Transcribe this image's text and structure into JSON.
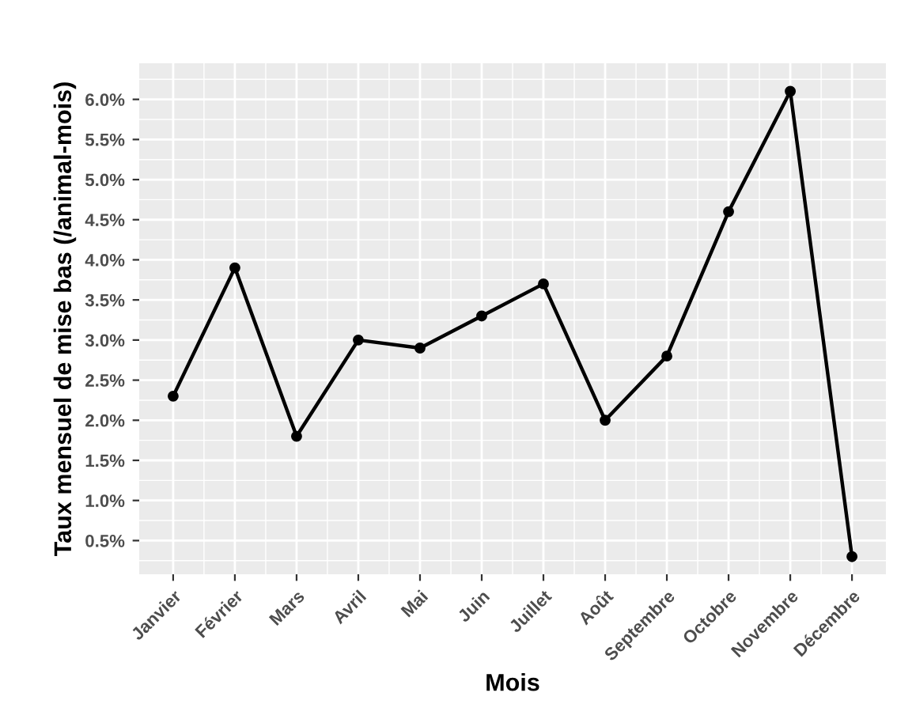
{
  "chart_data": {
    "type": "line",
    "xlabel": "Mois",
    "ylabel": "Taux mensuel de mise bas (/animal-mois)",
    "categories": [
      "Janvier",
      "Février",
      "Mars",
      "Avril",
      "Mai",
      "Juin",
      "Juillet",
      "Août",
      "Septembre",
      "Octobre",
      "Novembre",
      "Décembre"
    ],
    "series": [
      {
        "color": "#000000",
        "values": [
          2.3,
          3.9,
          1.8,
          3.0,
          2.9,
          3.3,
          3.7,
          2.0,
          2.8,
          4.6,
          6.1,
          0.3
        ]
      }
    ],
    "ylim": [
      0.08,
      6.45
    ],
    "yticks": [
      {
        "value": 0.5,
        "label": "0.5%"
      },
      {
        "value": 1.0,
        "label": "1.0%"
      },
      {
        "value": 1.5,
        "label": "1.5%"
      },
      {
        "value": 2.0,
        "label": "2.0%"
      },
      {
        "value": 2.5,
        "label": "2.5%"
      },
      {
        "value": 3.0,
        "label": "3.0%"
      },
      {
        "value": 3.5,
        "label": "3.5%"
      },
      {
        "value": 4.0,
        "label": "4.0%"
      },
      {
        "value": 4.5,
        "label": "4.5%"
      },
      {
        "value": 5.0,
        "label": "5.0%"
      },
      {
        "value": 5.5,
        "label": "5.5%"
      },
      {
        "value": 6.0,
        "label": "6.0%"
      }
    ],
    "grid": true,
    "marker": "circle",
    "line_style": "solid"
  }
}
